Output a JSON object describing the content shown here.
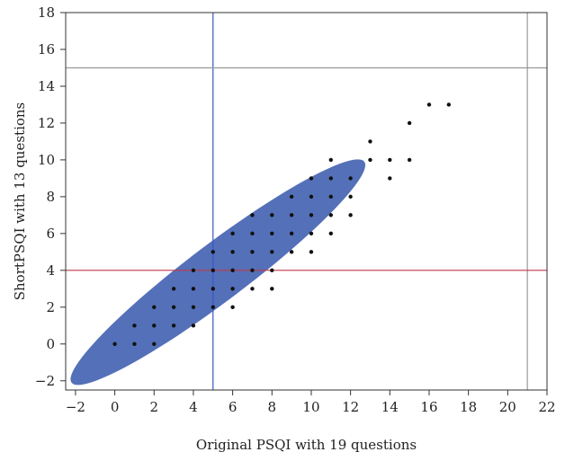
{
  "chart_data": {
    "type": "scatter",
    "xlabel": "Original PSQI with 19 questions",
    "ylabel": "ShortPSQI with 13 questions",
    "xlim": [
      -2.5,
      22
    ],
    "ylim": [
      -2.5,
      18
    ],
    "xticks": [
      -2,
      0,
      2,
      4,
      6,
      8,
      10,
      12,
      14,
      16,
      18,
      20,
      22
    ],
    "yticks": [
      -2,
      0,
      2,
      4,
      6,
      8,
      10,
      12,
      14,
      16,
      18
    ],
    "grid": false,
    "points": [
      [
        0,
        0
      ],
      [
        1,
        1
      ],
      [
        1,
        0
      ],
      [
        2,
        0
      ],
      [
        2,
        1
      ],
      [
        2,
        2
      ],
      [
        3,
        1
      ],
      [
        3,
        2
      ],
      [
        3,
        3
      ],
      [
        4,
        1
      ],
      [
        4,
        2
      ],
      [
        4,
        3
      ],
      [
        4,
        4
      ],
      [
        5,
        2
      ],
      [
        5,
        3
      ],
      [
        5,
        4
      ],
      [
        5,
        5
      ],
      [
        6,
        2
      ],
      [
        6,
        3
      ],
      [
        6,
        4
      ],
      [
        6,
        5
      ],
      [
        6,
        6
      ],
      [
        7,
        3
      ],
      [
        7,
        4
      ],
      [
        7,
        5
      ],
      [
        7,
        6
      ],
      [
        7,
        7
      ],
      [
        8,
        3
      ],
      [
        8,
        4
      ],
      [
        8,
        5
      ],
      [
        8,
        6
      ],
      [
        8,
        7
      ],
      [
        9,
        5
      ],
      [
        9,
        6
      ],
      [
        9,
        7
      ],
      [
        9,
        8
      ],
      [
        10,
        5
      ],
      [
        10,
        6
      ],
      [
        10,
        7
      ],
      [
        10,
        8
      ],
      [
        10,
        9
      ],
      [
        11,
        6
      ],
      [
        11,
        7
      ],
      [
        11,
        8
      ],
      [
        11,
        9
      ],
      [
        11,
        10
      ],
      [
        12,
        7
      ],
      [
        12,
        8
      ],
      [
        12,
        9
      ],
      [
        13,
        10
      ],
      [
        13,
        11
      ],
      [
        14,
        9
      ],
      [
        14,
        10
      ],
      [
        15,
        10
      ],
      [
        15,
        12
      ],
      [
        16,
        13
      ],
      [
        17,
        13
      ]
    ],
    "ellipse": {
      "endpoint_a": [
        -2.2,
        -2.1
      ],
      "endpoint_b": [
        12.7,
        9.9
      ],
      "minor_semi_axis": 1.55,
      "color": "#5470b8"
    },
    "reference_lines": [
      {
        "orientation": "vertical",
        "value": 5,
        "color": "#3b55c9"
      },
      {
        "orientation": "vertical",
        "value": 21,
        "color": "#999999"
      },
      {
        "orientation": "horizontal",
        "value": 15,
        "color": "#999999"
      },
      {
        "orientation": "horizontal",
        "value": 4,
        "color": "#c0394a"
      }
    ],
    "point_color": "#111111"
  }
}
